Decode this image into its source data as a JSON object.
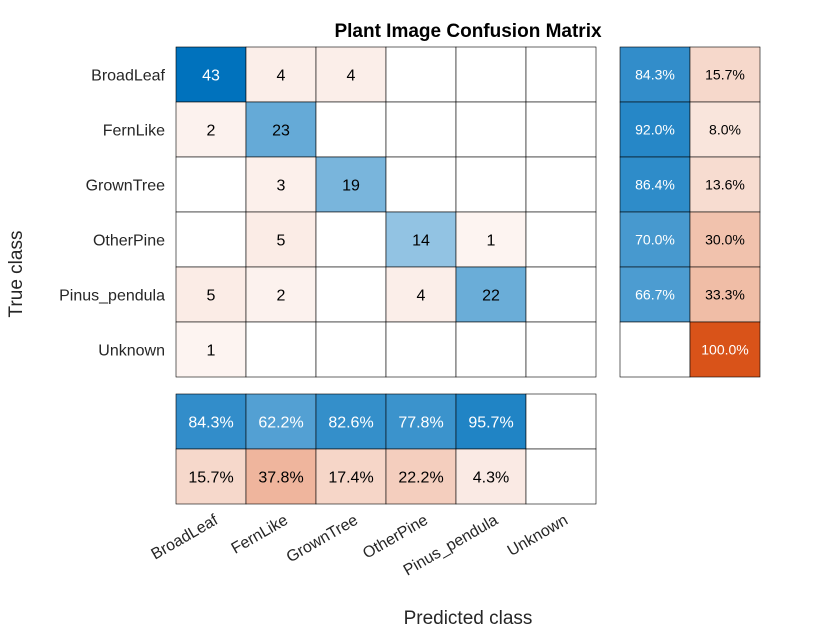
{
  "chart_data": {
    "type": "heatmap",
    "title": "Plant Image Confusion Matrix",
    "xlabel": "Predicted class",
    "ylabel": "True class",
    "classes": [
      "BroadLeaf",
      "FernLike",
      "GrownTree",
      "OtherPine",
      "Pinus_pendula",
      "Unknown"
    ],
    "matrix": [
      [
        43,
        4,
        4,
        0,
        0,
        0
      ],
      [
        2,
        23,
        0,
        0,
        0,
        0
      ],
      [
        0,
        3,
        19,
        0,
        0,
        0
      ],
      [
        0,
        5,
        0,
        14,
        1,
        0
      ],
      [
        5,
        2,
        0,
        4,
        22,
        0
      ],
      [
        1,
        0,
        0,
        0,
        0,
        0
      ]
    ],
    "row_summary": [
      [
        "84.3%",
        "15.7%"
      ],
      [
        "92.0%",
        "8.0%"
      ],
      [
        "86.4%",
        "13.6%"
      ],
      [
        "70.0%",
        "30.0%"
      ],
      [
        "66.7%",
        "33.3%"
      ],
      [
        "",
        "100.0%"
      ]
    ],
    "column_summary": [
      [
        "84.3%",
        "62.2%",
        "82.6%",
        "77.8%",
        "95.7%",
        ""
      ],
      [
        "15.7%",
        "37.8%",
        "17.4%",
        "22.2%",
        "4.3%",
        ""
      ]
    ],
    "colors": {
      "correct": "#0072BD",
      "incorrect": "#D95319",
      "grid": "#000000"
    }
  }
}
